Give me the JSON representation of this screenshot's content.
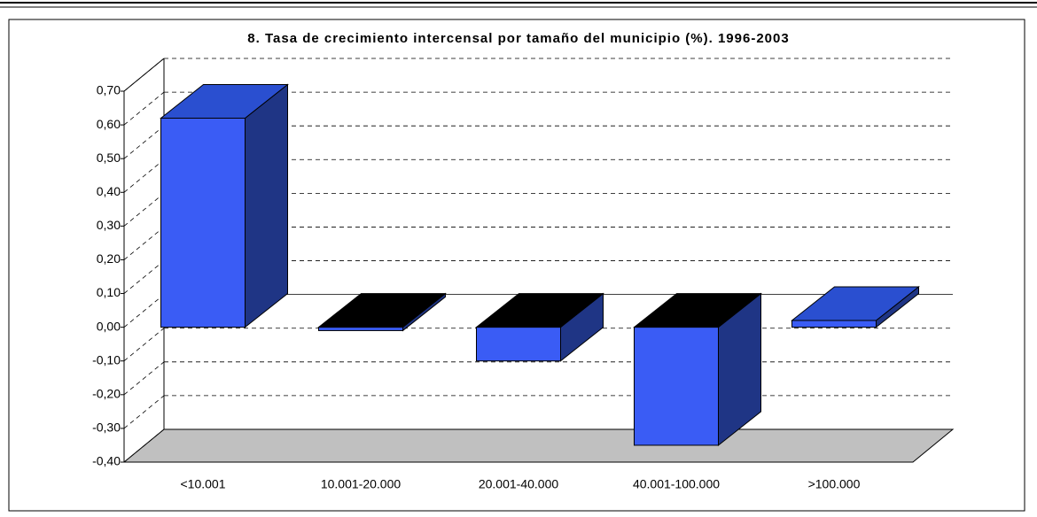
{
  "chart_data": {
    "type": "bar3d",
    "title": "8. Tasa de crecimiento intercensal por tamaño del municipio (%). 1996-2003",
    "categories": [
      "<10.001",
      "10.001-20.000",
      "20.001-40.000",
      "40.001-100.000",
      ">100.000"
    ],
    "values": [
      0.62,
      -0.01,
      -0.1,
      -0.35,
      0.02
    ],
    "color": "#3a5cf5",
    "ylim": [
      -0.4,
      0.7
    ],
    "yticks": [
      {
        "value": 0.7,
        "label": "0,70"
      },
      {
        "value": 0.6,
        "label": "0,60"
      },
      {
        "value": 0.5,
        "label": "0,50"
      },
      {
        "value": 0.4,
        "label": "0,40"
      },
      {
        "value": 0.3,
        "label": "0,30"
      },
      {
        "value": 0.2,
        "label": "0,20"
      },
      {
        "value": 0.1,
        "label": "0,10"
      },
      {
        "value": 0,
        "label": "0,00"
      },
      {
        "value": -0.1,
        "label": "-0,10"
      },
      {
        "value": -0.2,
        "label": "-0,20"
      },
      {
        "value": -0.3,
        "label": "-0,30"
      },
      {
        "value": -0.4,
        "label": "-0,40"
      }
    ],
    "grid": true
  }
}
